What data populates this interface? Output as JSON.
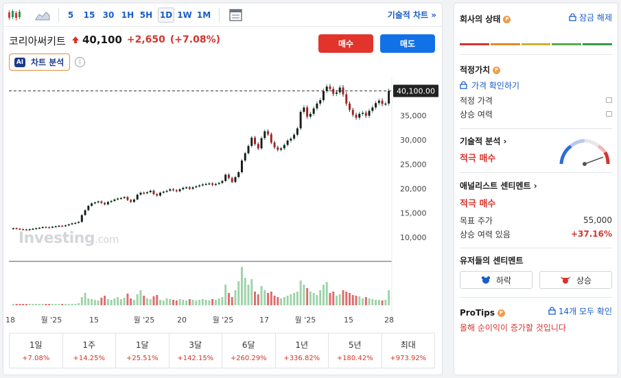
{
  "toolbar": {
    "intervals": [
      "5",
      "15",
      "30",
      "1H",
      "5H",
      "1D",
      "1W",
      "1M"
    ],
    "active_interval": "1D",
    "tech_chart_label": "기술적 차트 »"
  },
  "header": {
    "name": "코리아써키트",
    "price": "40,100",
    "change": "+2,650",
    "change_pct": "(+7.08%)",
    "buy_label": "매수",
    "sell_label": "매도",
    "ai_badge": "AI",
    "ai_label": "차트 분석",
    "info_glyph": "i"
  },
  "chart_data": {
    "type": "candlestick",
    "price_tag": "40,100.00",
    "y_ticks": [
      "35,000",
      "30,000",
      "25,000",
      "20,000",
      "15,000",
      "10,000"
    ],
    "y_tick_values": [
      35000,
      30000,
      25000,
      20000,
      15000,
      10000
    ],
    "ylim": [
      6500,
      42000
    ],
    "x_tick_labels": [
      "18",
      "월 '25",
      "15",
      "월 '25",
      "20",
      "월 '25",
      "17",
      "월 '25",
      "15",
      "28"
    ],
    "watermark": "Investing",
    "watermark_suffix": ".com",
    "closes": [
      11900,
      11800,
      11700,
      11650,
      11600,
      11700,
      11800,
      11900,
      12000,
      12150,
      12100,
      12050,
      12200,
      12300,
      12400,
      12350,
      12500,
      12700,
      12900,
      13000,
      13200,
      14600,
      15600,
      16500,
      17000,
      17200,
      17400,
      17100,
      16800,
      17300,
      17500,
      17800,
      18000,
      18100,
      18300,
      17700,
      17300,
      17800,
      18800,
      19200,
      19100,
      19300,
      19600,
      18900,
      18600,
      19200,
      19400,
      19600,
      19900,
      19700,
      19500,
      19900,
      20200,
      20300,
      20000,
      20300,
      20500,
      20700,
      20900,
      21000,
      21100,
      20800,
      21000,
      21200,
      21600,
      22900,
      22200,
      21400,
      22400,
      23400,
      25800,
      27300,
      28800,
      30500,
      29200,
      28300,
      30400,
      31800,
      31200,
      29500,
      28500,
      28000,
      28300,
      29000,
      29900,
      30300,
      31100,
      32400,
      35800,
      36700,
      34800,
      35400,
      36500,
      37500,
      38200,
      40100,
      41000,
      40500,
      39500,
      39800,
      40800,
      39400,
      37500,
      36200,
      35200,
      34600,
      35400,
      35600,
      35000,
      36000,
      36700,
      37600,
      38100,
      37400,
      37500,
      40100
    ],
    "volumes": [
      2,
      2,
      2,
      2,
      2,
      2,
      2,
      2,
      2,
      2,
      2,
      2,
      2,
      2,
      2,
      2,
      2,
      2,
      2,
      2,
      3,
      12,
      18,
      10,
      9,
      8,
      7,
      11,
      14,
      9,
      8,
      10,
      12,
      9,
      11,
      17,
      10,
      8,
      16,
      22,
      14,
      10,
      9,
      13,
      15,
      8,
      7,
      10,
      9,
      8,
      7,
      9,
      8,
      7,
      9,
      8,
      7,
      8,
      9,
      8,
      7,
      9,
      8,
      10,
      12,
      30,
      18,
      12,
      22,
      35,
      56,
      40,
      30,
      38,
      20,
      16,
      28,
      22,
      18,
      20,
      14,
      12,
      10,
      12,
      14,
      16,
      18,
      20,
      36,
      30,
      25,
      20,
      18,
      15,
      22,
      30,
      34,
      18,
      20,
      14,
      16,
      22,
      20,
      18,
      15,
      14,
      13,
      10,
      12,
      10,
      9,
      8,
      8,
      7,
      8,
      22
    ],
    "vol_colors": [
      "g",
      "r",
      "r",
      "r",
      "r",
      "g",
      "g",
      "g",
      "g",
      "g",
      "r",
      "r",
      "g",
      "g",
      "g",
      "r",
      "g",
      "g",
      "g",
      "g",
      "g",
      "g",
      "g",
      "g",
      "g",
      "g",
      "g",
      "r",
      "r",
      "g",
      "g",
      "g",
      "g",
      "g",
      "g",
      "r",
      "r",
      "g",
      "g",
      "g",
      "r",
      "g",
      "g",
      "r",
      "r",
      "g",
      "g",
      "g",
      "g",
      "r",
      "r",
      "g",
      "g",
      "g",
      "r",
      "g",
      "g",
      "g",
      "g",
      "g",
      "g",
      "r",
      "g",
      "g",
      "g",
      "g",
      "r",
      "r",
      "g",
      "g",
      "g",
      "g",
      "g",
      "g",
      "r",
      "r",
      "g",
      "g",
      "r",
      "r",
      "r",
      "r",
      "g",
      "g",
      "g",
      "g",
      "g",
      "g",
      "g",
      "g",
      "r",
      "g",
      "g",
      "g",
      "g",
      "g",
      "g",
      "r",
      "r",
      "g",
      "g",
      "r",
      "r",
      "r",
      "r",
      "r",
      "g",
      "g",
      "r",
      "g",
      "g",
      "g",
      "g",
      "r",
      "g",
      "g"
    ]
  },
  "periods": [
    {
      "label": "1일",
      "value": "+7.08%"
    },
    {
      "label": "1주",
      "value": "+14.25%"
    },
    {
      "label": "1달",
      "value": "+25.51%"
    },
    {
      "label": "3달",
      "value": "+142.15%"
    },
    {
      "label": "6달",
      "value": "+260.29%"
    },
    {
      "label": "1년",
      "value": "+336.82%"
    },
    {
      "label": "5년",
      "value": "+180.42%"
    },
    {
      "label": "최대",
      "value": "+973.92%"
    }
  ],
  "health": {
    "title": "회사의 상태",
    "unlock": "잠금 해제",
    "bar_colors": [
      "#d5342c",
      "#e08a2c",
      "#c7b22c",
      "#5aaa4a",
      "#2f9a44"
    ]
  },
  "fair_value": {
    "title": "적정가치",
    "check_link": "가격 확인하기",
    "rows": [
      "적정 가격",
      "상승 여력"
    ]
  },
  "technical": {
    "title": "기술적 분석 ›",
    "signal": "적극 매수"
  },
  "analyst": {
    "title": "애널리스트 센티멘트 ›",
    "signal": "적극 매수",
    "target_label": "목표 주가",
    "target_value": "55,000",
    "upside_label": "상승 여력 있음",
    "upside_value": "+37.16%"
  },
  "user_sentiment": {
    "title": "유저들의 센티멘트",
    "bear": "하락",
    "bull": "상승"
  },
  "protips": {
    "title": "ProTips",
    "see_all": "14개 모두 확인",
    "tip": "올해 순이익이 증가할 것입니다"
  }
}
